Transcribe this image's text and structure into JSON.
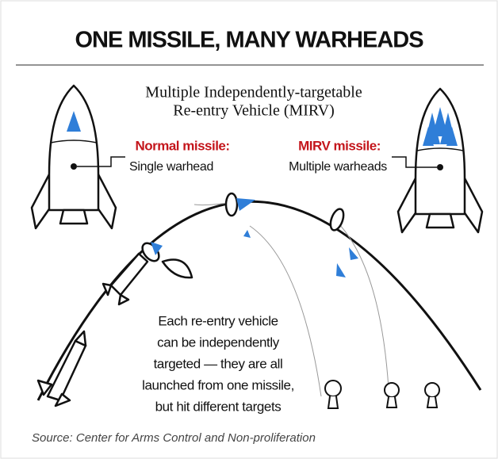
{
  "title": "ONE MISSILE, MANY WARHEADS",
  "subtitle": {
    "lines": [
      "Multiple Independently-targetable",
      "Re-entry Vehicle (MIRV)"
    ]
  },
  "labels": {
    "normal": {
      "heading": "Normal missile:",
      "text": "Single warhead"
    },
    "mirv": {
      "heading": "MIRV missile:",
      "text": "Multiple warheads"
    }
  },
  "note": {
    "lines": [
      "Each re-entry vehicle",
      "can be independently",
      "targeted — they are all",
      "launched from one missile,",
      "but hit different targets"
    ]
  },
  "source": "Source: Center for Arms Control and Non-proliferation"
}
